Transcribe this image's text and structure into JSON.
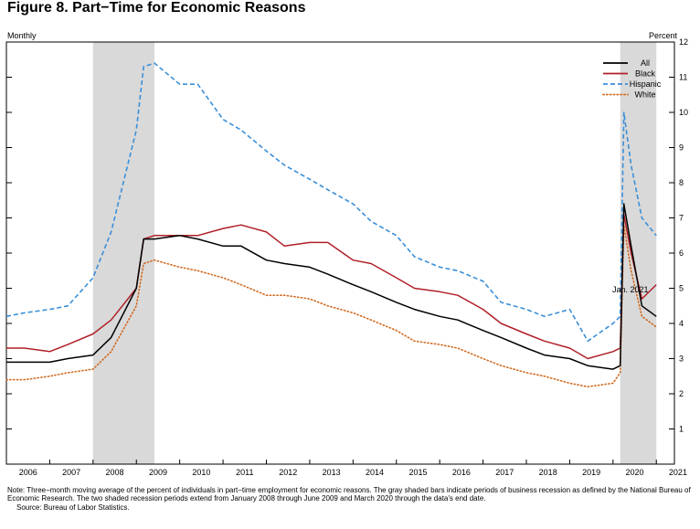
{
  "title": "Figure 8. Part−Time for Economic Reasons",
  "notes": {
    "note": "Note: Three−month moving average of the percent of individuals in part−time employment for economic reasons. The gray shaded bars indicate periods of business recession as defined by the National Bureau of Economic Research. The two shaded recession periods extend from January 2008 through June 2009 and March 2020 through the data's end date.",
    "source": "Source: Bureau of Labor Statistics."
  },
  "chart_data": {
    "type": "line",
    "left_axis_label": "Monthly",
    "right_axis_label": "Percent",
    "annotation": "Jan. 2021",
    "x_tick_labels": [
      "2006",
      "2007",
      "2008",
      "2009",
      "2010",
      "2011",
      "2012",
      "2013",
      "2014",
      "2015",
      "2016",
      "2017",
      "2018",
      "2019",
      "2020",
      "2021"
    ],
    "xlim": [
      "2006-01",
      "2021-06"
    ],
    "ylim": [
      0,
      12
    ],
    "y_ticks": [
      1,
      2,
      3,
      4,
      5,
      6,
      7,
      8,
      9,
      10,
      11,
      12
    ],
    "recessions": [
      [
        "2008-01",
        "2009-06"
      ],
      [
        "2020-03",
        "2021-01"
      ]
    ],
    "legend_position": "top-right",
    "series": [
      {
        "name": "All",
        "color": "#000000",
        "style": "solid",
        "x": [
          "2006-01",
          "2006-06",
          "2007-01",
          "2007-06",
          "2008-01",
          "2008-06",
          "2009-01",
          "2009-03",
          "2009-06",
          "2010-01",
          "2010-06",
          "2011-01",
          "2011-06",
          "2012-01",
          "2012-06",
          "2013-01",
          "2013-06",
          "2014-01",
          "2014-06",
          "2015-01",
          "2015-06",
          "2016-01",
          "2016-06",
          "2017-01",
          "2017-06",
          "2018-01",
          "2018-06",
          "2019-01",
          "2019-06",
          "2020-01",
          "2020-03",
          "2020-04",
          "2020-06",
          "2020-09",
          "2021-01"
        ],
        "values": [
          2.9,
          2.9,
          2.9,
          3.0,
          3.1,
          3.6,
          5.0,
          6.4,
          6.4,
          6.5,
          6.4,
          6.2,
          6.2,
          5.8,
          5.7,
          5.6,
          5.4,
          5.1,
          4.9,
          4.6,
          4.4,
          4.2,
          4.1,
          3.8,
          3.6,
          3.3,
          3.1,
          3.0,
          2.8,
          2.7,
          2.8,
          7.4,
          6.2,
          4.5,
          4.2
        ]
      },
      {
        "name": "Black",
        "color": "#b02028",
        "style": "solid",
        "x": [
          "2006-01",
          "2006-06",
          "2007-01",
          "2007-06",
          "2008-01",
          "2008-06",
          "2009-01",
          "2009-03",
          "2009-06",
          "2010-01",
          "2010-06",
          "2011-01",
          "2011-06",
          "2012-01",
          "2012-06",
          "2013-01",
          "2013-06",
          "2014-01",
          "2014-06",
          "2015-01",
          "2015-06",
          "2016-01",
          "2016-06",
          "2017-01",
          "2017-06",
          "2018-01",
          "2018-06",
          "2019-01",
          "2019-06",
          "2020-01",
          "2020-03",
          "2020-04",
          "2020-06",
          "2020-09",
          "2021-01"
        ],
        "values": [
          3.3,
          3.3,
          3.2,
          3.4,
          3.7,
          4.1,
          5.0,
          6.4,
          6.5,
          6.5,
          6.5,
          6.7,
          6.8,
          6.6,
          6.2,
          6.3,
          6.3,
          5.8,
          5.7,
          5.3,
          5.0,
          4.9,
          4.8,
          4.4,
          4.0,
          3.7,
          3.5,
          3.3,
          3.0,
          3.2,
          3.3,
          7.1,
          6.0,
          4.7,
          5.1
        ]
      },
      {
        "name": "Hispanic",
        "color": "#3a8fd8",
        "style": "dashed",
        "x": [
          "2006-01",
          "2006-06",
          "2007-01",
          "2007-06",
          "2008-01",
          "2008-06",
          "2009-01",
          "2009-03",
          "2009-06",
          "2010-01",
          "2010-06",
          "2011-01",
          "2011-06",
          "2012-01",
          "2012-06",
          "2013-01",
          "2013-06",
          "2014-01",
          "2014-06",
          "2015-01",
          "2015-06",
          "2016-01",
          "2016-06",
          "2017-01",
          "2017-06",
          "2018-01",
          "2018-06",
          "2019-01",
          "2019-06",
          "2020-01",
          "2020-03",
          "2020-04",
          "2020-06",
          "2020-09",
          "2021-01"
        ],
        "values": [
          4.2,
          4.3,
          4.4,
          4.5,
          5.3,
          6.6,
          9.5,
          11.3,
          11.4,
          10.8,
          10.8,
          9.8,
          9.5,
          8.9,
          8.5,
          8.1,
          7.8,
          7.4,
          6.9,
          6.5,
          5.9,
          5.6,
          5.5,
          5.2,
          4.6,
          4.4,
          4.2,
          4.4,
          3.5,
          4.0,
          4.2,
          10.0,
          8.5,
          7.0,
          6.5
        ]
      },
      {
        "name": "White",
        "color": "#d2691e",
        "style": "dotted",
        "x": [
          "2006-01",
          "2006-06",
          "2007-01",
          "2007-06",
          "2008-01",
          "2008-06",
          "2009-01",
          "2009-03",
          "2009-06",
          "2010-01",
          "2010-06",
          "2011-01",
          "2011-06",
          "2012-01",
          "2012-06",
          "2013-01",
          "2013-06",
          "2014-01",
          "2014-06",
          "2015-01",
          "2015-06",
          "2016-01",
          "2016-06",
          "2017-01",
          "2017-06",
          "2018-01",
          "2018-06",
          "2019-01",
          "2019-06",
          "2020-01",
          "2020-03",
          "2020-04",
          "2020-06",
          "2020-09",
          "2021-01"
        ],
        "values": [
          2.4,
          2.4,
          2.5,
          2.6,
          2.7,
          3.2,
          4.5,
          5.7,
          5.8,
          5.6,
          5.5,
          5.3,
          5.1,
          4.8,
          4.8,
          4.7,
          4.5,
          4.3,
          4.1,
          3.8,
          3.5,
          3.4,
          3.3,
          3.0,
          2.8,
          2.6,
          2.5,
          2.3,
          2.2,
          2.3,
          2.6,
          6.8,
          5.5,
          4.2,
          3.9
        ]
      }
    ]
  }
}
